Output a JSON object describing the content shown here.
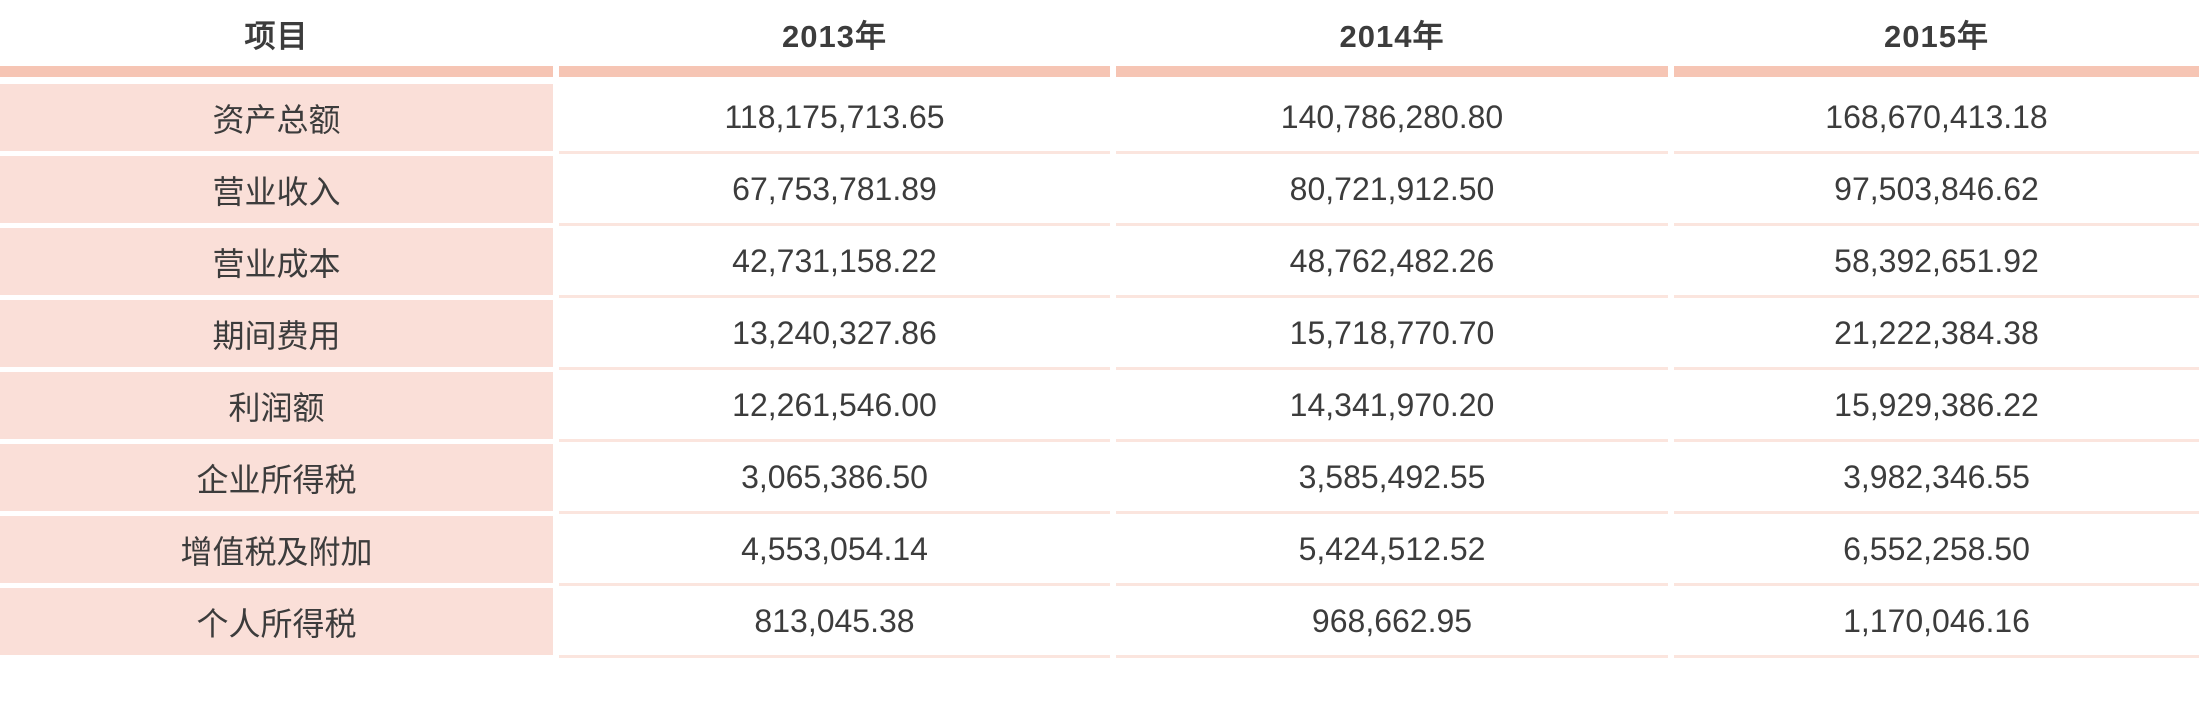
{
  "table": {
    "columns": [
      "项目",
      "2013年",
      "2014年",
      "2015年"
    ],
    "rows": [
      {
        "label": "资产总额",
        "values": [
          "118,175,713.65",
          "140,786,280.80",
          "168,670,413.18"
        ]
      },
      {
        "label": "营业收入",
        "values": [
          "67,753,781.89",
          "80,721,912.50",
          "97,503,846.62"
        ]
      },
      {
        "label": "营业成本",
        "values": [
          "42,731,158.22",
          "48,762,482.26",
          "58,392,651.92"
        ]
      },
      {
        "label": "期间费用",
        "values": [
          "13,240,327.86",
          "15,718,770.70",
          "21,222,384.38"
        ]
      },
      {
        "label": "利润额",
        "values": [
          "12,261,546.00",
          "14,341,970.20",
          "15,929,386.22"
        ]
      },
      {
        "label": "企业所得税",
        "values": [
          "3,065,386.50",
          "3,585,492.55",
          "3,982,346.55"
        ]
      },
      {
        "label": "增值税及附加",
        "values": [
          "4,553,054.14",
          "5,424,512.52",
          "6,552,258.50"
        ]
      },
      {
        "label": "个人所得税",
        "values": [
          "813,045.38",
          "968,662.95",
          "1,170,046.16"
        ]
      }
    ]
  },
  "colors": {
    "header_underline": "#f6c5b4",
    "label_cell_background": "#fadfd8",
    "row_separator": "#fbe5de",
    "text": "#3c3c3c"
  },
  "chart_data": {
    "type": "table",
    "columns": [
      "项目",
      "2013年",
      "2014年",
      "2015年"
    ],
    "rows": [
      [
        "资产总额",
        118175713.65,
        140786280.8,
        168670413.18
      ],
      [
        "营业收入",
        67753781.89,
        80721912.5,
        97503846.62
      ],
      [
        "营业成本",
        42731158.22,
        48762482.26,
        58392651.92
      ],
      [
        "期间费用",
        13240327.86,
        15718770.7,
        21222384.38
      ],
      [
        "利润额",
        12261546.0,
        14341970.2,
        15929386.22
      ],
      [
        "企业所得税",
        3065386.5,
        3585492.55,
        3982346.55
      ],
      [
        "增值税及附加",
        4553054.14,
        5424512.52,
        6552258.5
      ],
      [
        "个人所得税",
        813045.38,
        968662.95,
        1170046.16
      ]
    ]
  }
}
